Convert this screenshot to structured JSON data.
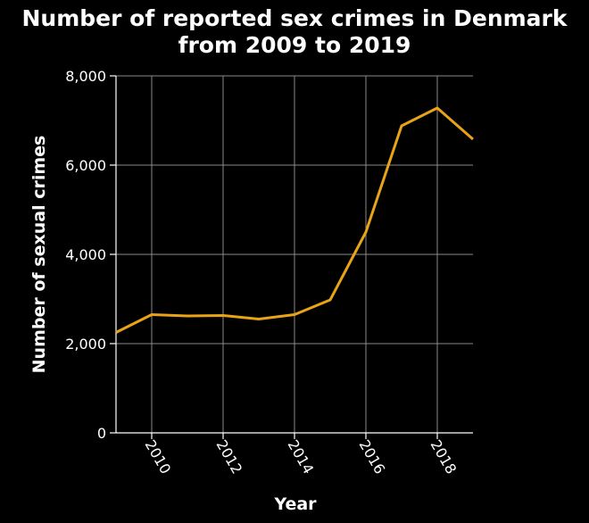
{
  "chart_data": {
    "type": "line",
    "title": "Number of reported sex crimes in Denmark from 2009 to 2019",
    "title_lines": [
      "Number of reported sex crimes in Denmark",
      "from 2009 to 2019"
    ],
    "xlabel": "Year",
    "ylabel": "Number of sexual crimes",
    "x": [
      2009,
      2010,
      2011,
      2012,
      2013,
      2014,
      2015,
      2016,
      2017,
      2018,
      2019
    ],
    "series": [
      {
        "values": [
          2250,
          2650,
          2620,
          2630,
          2550,
          2650,
          2980,
          4500,
          6880,
          7280,
          6580
        ]
      }
    ],
    "xlim": [
      2009,
      2019
    ],
    "ylim": [
      0,
      8000
    ],
    "x_ticks": [
      2010,
      2012,
      2014,
      2016,
      2018
    ],
    "y_ticks": [
      0,
      2000,
      4000,
      6000,
      8000
    ],
    "y_tick_labels": [
      "0",
      "2,000",
      "4,000",
      "6,000",
      "8,000"
    ],
    "grid": true,
    "colors": {
      "background": "#000000",
      "plot_background": "#000000",
      "grid": "#8a8a8a",
      "axis": "#ffffff",
      "text": "#ffffff",
      "line": "#e8a317"
    }
  }
}
